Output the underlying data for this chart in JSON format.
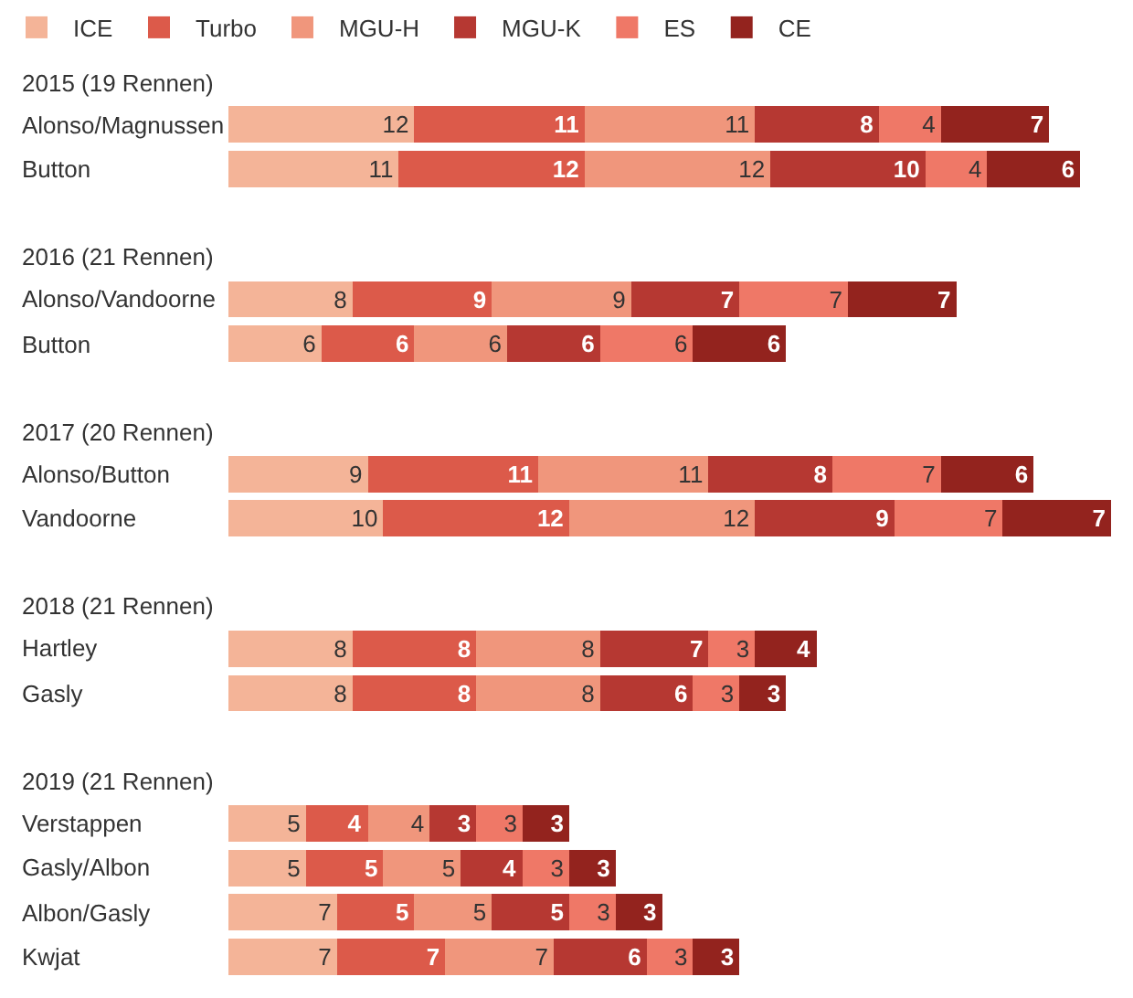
{
  "chart_data": [
    {
      "type": "bar",
      "orientation": "horizontal",
      "stacked": true,
      "data_labels": true,
      "tick_labels": "y",
      "legend": "top left",
      "title": "2015 (19 Rennen)",
      "categories": [
        "Alonso/Magnussen",
        "Button"
      ],
      "series": [
        {
          "name": "ICE",
          "color": "#f4b498",
          "values": [
            12,
            11
          ]
        },
        {
          "name": "Turbo",
          "color": "#dc5a4a",
          "values": [
            11,
            12
          ]
        },
        {
          "name": "MGU-H",
          "color": "#f0967c",
          "values": [
            11,
            12
          ]
        },
        {
          "name": "MGU-K",
          "color": "#b63832",
          "values": [
            8,
            10
          ]
        },
        {
          "name": "ES",
          "color": "#ef7867",
          "values": [
            4,
            4
          ]
        },
        {
          "name": "CE",
          "color": "#93231e",
          "values": [
            7,
            6
          ]
        }
      ]
    },
    {
      "type": "bar",
      "orientation": "horizontal",
      "stacked": true,
      "data_labels": true,
      "tick_labels": "y",
      "title": "2016 (21 Rennen)",
      "categories": [
        "Alonso/Vandoorne",
        "Button"
      ],
      "series": [
        {
          "color": "#f4b498",
          "values": [
            8,
            6
          ]
        },
        {
          "color": "#dc5a4a",
          "values": [
            9,
            6
          ]
        },
        {
          "color": "#f0967c",
          "values": [
            9,
            6
          ]
        },
        {
          "color": "#b63832",
          "values": [
            7,
            6
          ]
        },
        {
          "color": "#ef7867",
          "values": [
            7,
            6
          ]
        },
        {
          "color": "#93231e",
          "values": [
            7,
            6
          ]
        }
      ]
    },
    {
      "type": "bar",
      "orientation": "horizontal",
      "stacked": true,
      "data_labels": true,
      "tick_labels": "y",
      "title": "2017 (20 Rennen)",
      "categories": [
        "Alonso/Button",
        "Vandoorne"
      ],
      "series": [
        {
          "color": "#f4b498",
          "values": [
            9,
            10
          ]
        },
        {
          "color": "#dc5a4a",
          "values": [
            11,
            12
          ]
        },
        {
          "color": "#f0967c",
          "values": [
            11,
            12
          ]
        },
        {
          "color": "#b63832",
          "values": [
            8,
            9
          ]
        },
        {
          "color": "#ef7867",
          "values": [
            7,
            7
          ]
        },
        {
          "color": "#93231e",
          "values": [
            6,
            7
          ]
        }
      ]
    },
    {
      "type": "bar",
      "orientation": "horizontal",
      "stacked": true,
      "data_labels": true,
      "tick_labels": "y",
      "title": "2018 (21 Rennen)",
      "categories": [
        "Hartley",
        "Gasly"
      ],
      "series": [
        {
          "color": "#f4b498",
          "values": [
            8,
            8
          ]
        },
        {
          "color": "#dc5a4a",
          "values": [
            8,
            8
          ]
        },
        {
          "color": "#f0967c",
          "values": [
            8,
            8
          ]
        },
        {
          "color": "#b63832",
          "values": [
            7,
            6
          ]
        },
        {
          "color": "#ef7867",
          "values": [
            3,
            3
          ]
        },
        {
          "color": "#93231e",
          "values": [
            4,
            3
          ]
        }
      ]
    },
    {
      "type": "bar",
      "orientation": "horizontal",
      "stacked": true,
      "data_labels": true,
      "tick_labels": "y",
      "title": "2019 (21 Rennen)",
      "categories": [
        "Verstappen",
        "Gasly/Albon",
        "Albon/Gasly",
        "Kwjat"
      ],
      "series": [
        {
          "color": "#f4b498",
          "values": [
            5,
            5,
            7,
            7
          ]
        },
        {
          "color": "#dc5a4a",
          "values": [
            4,
            5,
            5,
            7
          ]
        },
        {
          "color": "#f0967c",
          "values": [
            4,
            5,
            5,
            7
          ]
        },
        {
          "color": "#b63832",
          "values": [
            3,
            4,
            5,
            6
          ]
        },
        {
          "color": "#ef7867",
          "values": [
            3,
            3,
            3,
            3
          ]
        },
        {
          "color": "#93231e",
          "values": [
            3,
            3,
            3,
            3
          ]
        }
      ]
    }
  ]
}
